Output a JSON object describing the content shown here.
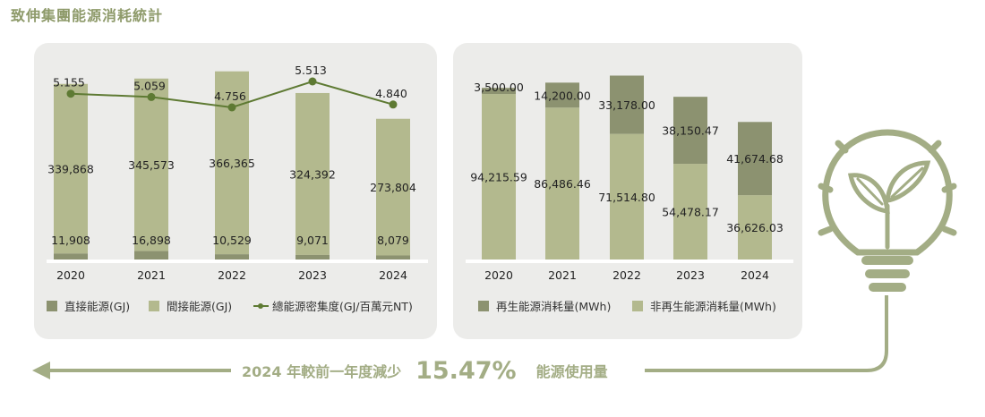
{
  "title": "致伸集團能源消耗統計",
  "colors": {
    "dark": "#8c9270",
    "light": "#b3b98e",
    "line": "#5e7a33",
    "accent": "#a3ad85"
  },
  "chart_data": [
    {
      "type": "bar",
      "stacked": true,
      "categories": [
        "2020",
        "2021",
        "2022",
        "2023",
        "2024"
      ],
      "series": [
        {
          "name": "直接能源(GJ)",
          "values": [
            11908,
            16898,
            10529,
            9071,
            8079
          ],
          "labels": [
            "11,908",
            "16,898",
            "10,529",
            "9,071",
            "8,079"
          ]
        },
        {
          "name": "間接能源(GJ)",
          "values": [
            339868,
            345573,
            366365,
            324392,
            273804
          ],
          "labels": [
            "339,868",
            "345,573",
            "366,365",
            "324,392",
            "273,804"
          ]
        }
      ],
      "line_series": {
        "name": "總能源密集度(GJ/百萬元NT)",
        "values": [
          5.155,
          5.059,
          4.756,
          5.513,
          4.84
        ],
        "labels": [
          "5.155",
          "5.059",
          "4.756",
          "5.513",
          "4.840"
        ]
      },
      "legend": [
        "直接能源(GJ)",
        "間接能源(GJ)",
        "總能源密集度(GJ/百萬元NT)"
      ],
      "legend_position": "bottom"
    },
    {
      "type": "bar",
      "stacked": true,
      "categories": [
        "2020",
        "2021",
        "2022",
        "2023",
        "2024"
      ],
      "series": [
        {
          "name": "非再生能源消耗量(MWh)",
          "values": [
            94215.59,
            86486.46,
            71514.8,
            54478.17,
            36626.03
          ],
          "labels": [
            "94,215.59",
            "86,486.46",
            "71,514.80",
            "54,478.17",
            "36,626.03"
          ]
        },
        {
          "name": "再生能源消耗量(MWh)",
          "values": [
            3500.0,
            14200.0,
            33178.0,
            38150.47,
            41674.68
          ],
          "labels": [
            "3,500.00",
            "14,200.00",
            "33,178.00",
            "38,150.47",
            "41,674.68"
          ]
        }
      ],
      "legend": [
        "再生能源消耗量(MWh)",
        "非再生能源消耗量(MWh)"
      ],
      "legend_position": "bottom"
    }
  ],
  "summary": {
    "prefix": "2024 年較前一年度減少",
    "percent": "15.47%",
    "suffix": "能源使用量"
  }
}
